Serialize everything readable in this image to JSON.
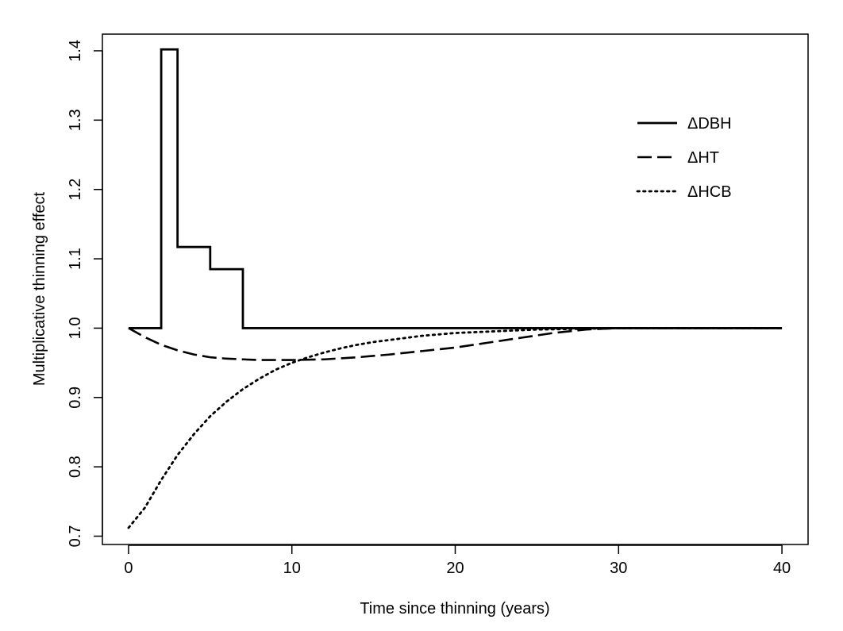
{
  "chart_data": {
    "type": "line",
    "title": "",
    "xlabel": "Time since thinning (years)",
    "ylabel": "Multiplicative thinning effect",
    "xlim": [
      -1.6,
      41.6
    ],
    "ylim": [
      0.688,
      1.424
    ],
    "xticks": [
      0,
      10,
      20,
      30,
      40
    ],
    "yticks": [
      0.7,
      0.8,
      0.9,
      1.0,
      1.1,
      1.2,
      1.3,
      1.4
    ],
    "ytick_labels": [
      "0.7",
      "0.8",
      "0.9",
      "1.0",
      "1.1",
      "1.2",
      "1.3",
      "1.4"
    ],
    "grid": false,
    "legend_position": "top-right",
    "series": [
      {
        "name": "ΔDBH",
        "line_style": "solid",
        "step": true,
        "x": [
          0,
          2,
          2,
          3,
          3,
          5,
          5,
          7,
          7,
          40
        ],
        "y": [
          1.0,
          1.0,
          1.402,
          1.402,
          1.117,
          1.117,
          1.085,
          1.085,
          1.0,
          1.0
        ]
      },
      {
        "name": "ΔHT",
        "line_style": "dashed",
        "x": [
          0,
          1,
          2,
          3,
          4,
          5,
          6,
          7,
          8,
          9,
          10,
          12,
          14,
          16,
          18,
          20,
          22,
          24,
          26,
          28,
          30,
          35,
          40
        ],
        "y": [
          1.0,
          0.987,
          0.976,
          0.968,
          0.962,
          0.958,
          0.956,
          0.955,
          0.954,
          0.954,
          0.954,
          0.955,
          0.958,
          0.962,
          0.967,
          0.972,
          0.979,
          0.986,
          0.993,
          0.998,
          1.0,
          1.0,
          1.0
        ]
      },
      {
        "name": "ΔHCB",
        "line_style": "dotted",
        "x": [
          0,
          1,
          2,
          3,
          4,
          5,
          6,
          7,
          8,
          9,
          10,
          11,
          12,
          13,
          14,
          15,
          16,
          18,
          20,
          22,
          25,
          30,
          35,
          40
        ],
        "y": [
          0.712,
          0.741,
          0.781,
          0.817,
          0.847,
          0.873,
          0.894,
          0.912,
          0.927,
          0.94,
          0.95,
          0.958,
          0.965,
          0.971,
          0.976,
          0.98,
          0.983,
          0.989,
          0.993,
          0.995,
          0.998,
          1.0,
          1.0,
          1.0
        ]
      }
    ]
  }
}
